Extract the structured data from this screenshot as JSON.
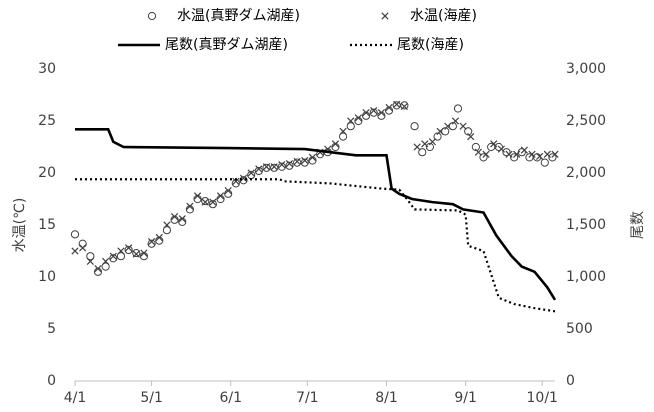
{
  "chart_data": {
    "type": "combo",
    "y_label": "水温(℃)",
    "y2_label": "尾数",
    "xlim": [
      0,
      188
    ],
    "xticks": [
      {
        "value": 0,
        "label": "4/1"
      },
      {
        "value": 30,
        "label": "5/1"
      },
      {
        "value": 61,
        "label": "6/1"
      },
      {
        "value": 91,
        "label": "7/1"
      },
      {
        "value": 122,
        "label": "8/1"
      },
      {
        "value": 153,
        "label": "9/1"
      },
      {
        "value": 183,
        "label": "10/1"
      }
    ],
    "ylim": [
      0,
      30
    ],
    "yticks": [
      0,
      5,
      10,
      15,
      20,
      25,
      30
    ],
    "y2lim": [
      0,
      3000
    ],
    "y2ticks": [
      0,
      {
        "value": 500,
        "label": "500"
      },
      {
        "value": 1000,
        "label": "1,000"
      },
      {
        "value": 1500,
        "label": "1,500"
      },
      {
        "value": 2000,
        "label": "2,000"
      },
      {
        "value": 2500,
        "label": "2,500"
      },
      {
        "value": 3000,
        "label": "3,000"
      }
    ],
    "series": [
      {
        "name": "水温(真野ダム湖産)",
        "type": "scatter",
        "marker": "circle",
        "color": "#404040",
        "x": [
          0,
          3,
          6,
          9,
          12,
          15,
          18,
          21,
          24,
          27,
          30,
          33,
          36,
          39,
          42,
          45,
          48,
          51,
          54,
          57,
          60,
          63,
          66,
          69,
          72,
          75,
          78,
          81,
          84,
          87,
          90,
          93,
          96,
          99,
          102,
          105,
          108,
          111,
          114,
          117,
          120,
          123,
          126,
          129,
          133,
          136,
          139,
          142,
          145,
          148,
          150,
          154,
          157,
          160,
          163,
          166,
          169,
          172,
          175,
          178,
          181,
          184,
          187
        ],
        "values": [
          14.1,
          13.2,
          12,
          10.5,
          11,
          11.8,
          12,
          12.6,
          12.3,
          12,
          13.2,
          13.5,
          14.5,
          15.5,
          15.3,
          16.5,
          17.5,
          17.3,
          17,
          17.5,
          18,
          19,
          19.3,
          19.8,
          20.2,
          20.5,
          20.5,
          20.6,
          20.7,
          21,
          21,
          21.2,
          21.8,
          22,
          22.5,
          23.5,
          24.5,
          25,
          25.5,
          25.8,
          25.5,
          26,
          26.5,
          26.5,
          24.5,
          22,
          22.5,
          23.5,
          24,
          24.5,
          26.2,
          24,
          22.5,
          21.5,
          22.5,
          22.5,
          22,
          21.5,
          22,
          21.5,
          21.5,
          21,
          21.5
        ]
      },
      {
        "name": "水温(海産)",
        "type": "scatter",
        "marker": "x",
        "color": "#404040",
        "x": [
          0,
          3,
          6,
          9,
          12,
          15,
          18,
          21,
          24,
          27,
          30,
          33,
          36,
          39,
          42,
          45,
          48,
          51,
          54,
          57,
          60,
          63,
          66,
          69,
          72,
          75,
          78,
          81,
          84,
          87,
          90,
          93,
          96,
          99,
          102,
          105,
          108,
          111,
          114,
          117,
          120,
          123,
          126,
          129,
          134,
          137,
          140,
          143,
          146,
          149,
          152,
          155,
          158,
          161,
          164,
          167,
          170,
          173,
          176,
          179,
          182,
          185,
          188
        ],
        "values": [
          12.5,
          12.8,
          11.5,
          10.8,
          11.5,
          12,
          12.5,
          12.8,
          12.2,
          12.3,
          13.4,
          13.8,
          15,
          15.8,
          15.6,
          16.8,
          17.8,
          17.2,
          17.2,
          17.8,
          18.3,
          19.2,
          19.5,
          20,
          20.4,
          20.6,
          20.6,
          20.8,
          20.9,
          21.1,
          21.2,
          21.5,
          22,
          22.3,
          22.8,
          24,
          25,
          25.3,
          25.8,
          26,
          25.8,
          26.3,
          26.6,
          26.4,
          22.5,
          22.8,
          23,
          24,
          24.5,
          25,
          24.5,
          23.5,
          22,
          21.8,
          22.8,
          22.3,
          21.8,
          21.8,
          22.2,
          21.8,
          21.6,
          21.8,
          21.8
        ]
      },
      {
        "name": "尾数(真野ダム湖産)",
        "type": "line",
        "axis": "y2",
        "dash": "solid",
        "color": "#000000",
        "x": [
          0,
          13,
          15,
          19,
          60,
          90,
          100,
          110,
          122,
          124,
          127,
          132,
          140,
          148,
          152,
          160,
          165,
          171,
          175,
          180,
          185,
          188
        ],
        "values": [
          2420,
          2420,
          2300,
          2250,
          2240,
          2230,
          2200,
          2170,
          2170,
          1850,
          1800,
          1750,
          1720,
          1700,
          1650,
          1620,
          1400,
          1200,
          1100,
          1050,
          900,
          780
        ]
      },
      {
        "name": "尾数(海産)",
        "type": "line",
        "axis": "y2",
        "dash": "dotted",
        "color": "#000000",
        "x": [
          0,
          80,
          82,
          100,
          120,
          127,
          130,
          133,
          150,
          153,
          154,
          160,
          162,
          166,
          172,
          180,
          188
        ],
        "values": [
          1940,
          1940,
          1920,
          1900,
          1850,
          1840,
          1750,
          1650,
          1640,
          1600,
          1300,
          1250,
          1100,
          800,
          740,
          700,
          670
        ]
      }
    ]
  }
}
